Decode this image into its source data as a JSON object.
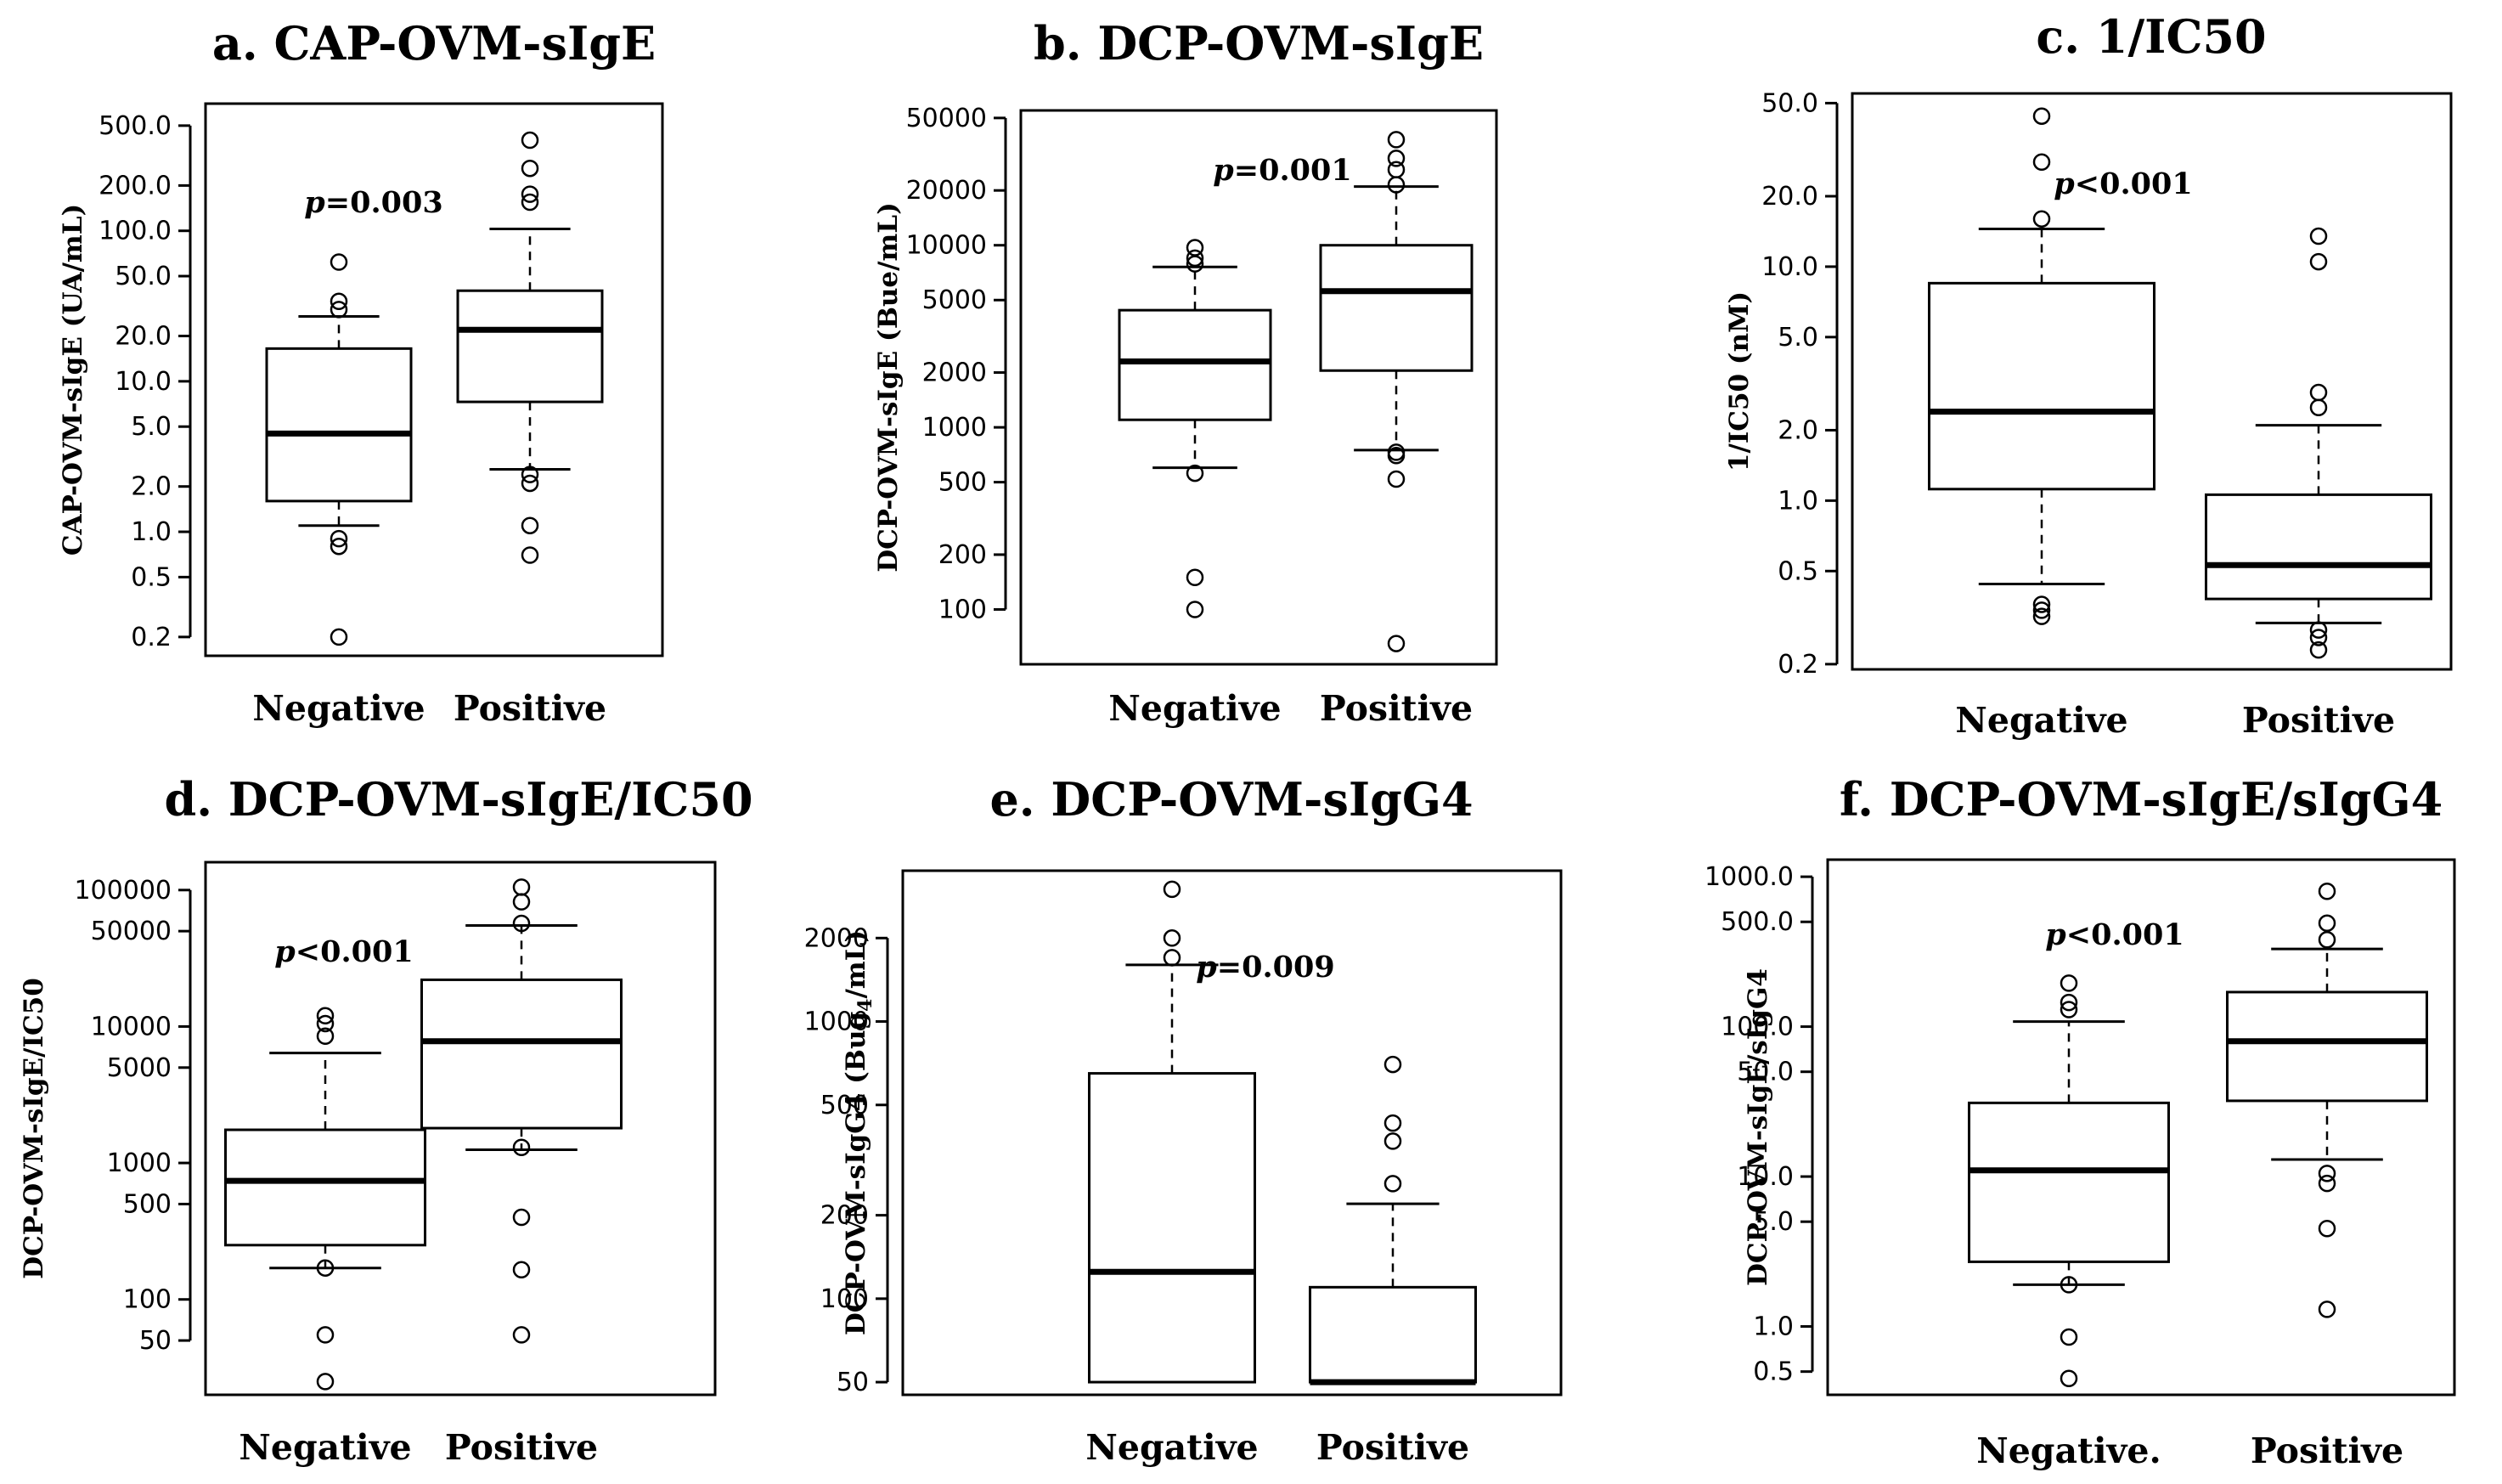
{
  "chart_data": [
    {
      "type": "box",
      "title": "a. CAP-OVM-sIgE",
      "ylabel": "CAP-OVM-sIgE (UA/mL)",
      "yscale": "log",
      "ylim": [
        0.15,
        700
      ],
      "yticks": [
        0.2,
        0.5,
        1,
        2,
        5,
        10,
        20,
        50,
        100,
        200,
        500
      ],
      "ytick_labels": [
        "0.2",
        "0.5",
        "1.0",
        "2.0",
        "5.0",
        "10.0",
        "20.0",
        "50.0",
        "100.0",
        "200.0",
        "500.0"
      ],
      "categories": [
        "Negative",
        "Positive"
      ],
      "boxes": [
        {
          "low": 1.1,
          "q1": 1.6,
          "median": 4.5,
          "q3": 16.5,
          "high": 27,
          "outliers": [
            0.2,
            0.8,
            0.9,
            30,
            34,
            62
          ]
        },
        {
          "low": 2.6,
          "q1": 7.3,
          "median": 22,
          "q3": 40,
          "high": 103,
          "outliers": [
            0.7,
            1.1,
            2.1,
            2.4,
            155,
            175,
            260,
            400
          ]
        }
      ],
      "annotation": {
        "italic": "p",
        "text": "=0.003"
      }
    },
    {
      "type": "box",
      "title": "b. DCP-OVM-sIgE",
      "ylabel": "DCP-OVM-sIgE (Bue/mL)",
      "yscale": "log",
      "ylim": [
        50,
        55000
      ],
      "yticks": [
        100,
        200,
        500,
        1000,
        2000,
        5000,
        10000,
        20000,
        50000
      ],
      "ytick_labels": [
        "100",
        "200",
        "500",
        "1000",
        "2000",
        "5000",
        "10000",
        "20000",
        "50000"
      ],
      "categories": [
        "Negative",
        "Positive"
      ],
      "boxes": [
        {
          "low": 600,
          "q1": 1100,
          "median": 2300,
          "q3": 4400,
          "high": 7600,
          "outliers": [
            100,
            150,
            560,
            7900,
            8500,
            9700
          ]
        },
        {
          "low": 750,
          "q1": 2050,
          "median": 5600,
          "q3": 10000,
          "high": 21000,
          "outliers": [
            65,
            520,
            700,
            730,
            21500,
            26000,
            30000,
            38000
          ]
        }
      ],
      "annotation": {
        "italic": "p",
        "text": "=0.001"
      }
    },
    {
      "type": "box",
      "title": "c. 1/IC50",
      "ylabel": "1/IC50 (nM)",
      "yscale": "log",
      "ylim": [
        0.19,
        55
      ],
      "yticks": [
        0.2,
        0.5,
        1,
        2,
        5,
        10,
        20,
        50
      ],
      "ytick_labels": [
        "0.2",
        "0.5",
        "1.0",
        "2.0",
        "5.0",
        "10.0",
        "20.0",
        "50.0"
      ],
      "categories": [
        "Negative",
        "Positive"
      ],
      "boxes": [
        {
          "low": 0.44,
          "q1": 1.12,
          "median": 2.4,
          "q3": 8.5,
          "high": 14.5,
          "outliers": [
            0.32,
            0.34,
            0.36,
            16,
            28,
            44
          ]
        },
        {
          "low": 0.3,
          "q1": 0.38,
          "median": 0.53,
          "q3": 1.06,
          "high": 2.1,
          "outliers": [
            0.23,
            0.26,
            0.28,
            2.5,
            2.9,
            10.5,
            13.5
          ]
        }
      ],
      "annotation": {
        "italic": "p",
        "text": "<0.001"
      }
    },
    {
      "type": "box",
      "title": "d. DCP-OVM-sIgE/IC50",
      "ylabel": "DCP-OVM-sIgE/IC50",
      "yscale": "log",
      "ylim": [
        20,
        160000
      ],
      "yticks": [
        50,
        100,
        500,
        1000,
        5000,
        10000,
        50000,
        100000
      ],
      "ytick_labels": [
        "50",
        "100",
        "500",
        "1000",
        "5000",
        "10000",
        "50000",
        "100000"
      ],
      "categories": [
        "Negative",
        "Positive"
      ],
      "boxes": [
        {
          "low": 170,
          "q1": 250,
          "median": 740,
          "q3": 1750,
          "high": 6400,
          "outliers": [
            25,
            55,
            170,
            8500,
            10500,
            12000
          ]
        },
        {
          "low": 1250,
          "q1": 1800,
          "median": 7800,
          "q3": 22000,
          "high": 55000,
          "outliers": [
            55,
            165,
            400,
            1300,
            57000,
            82000,
            105000
          ]
        }
      ],
      "annotation": {
        "italic": "p",
        "text": "<0.001"
      }
    },
    {
      "type": "box",
      "title": "e. DCP-OVM-sIgG4",
      "ylabel": "DCP-OVM-sIgG4 (Bug",
      "ylabel_sub": "4",
      "ylabel_end": "/mL)",
      "yscale": "log",
      "ylim": [
        45,
        3500
      ],
      "yticks": [
        50,
        100,
        200,
        500,
        1000,
        2000
      ],
      "ytick_labels": [
        "50",
        "100",
        "200",
        "500",
        "1000",
        "2000"
      ],
      "categories": [
        "Negative",
        "Positive"
      ],
      "boxes": [
        {
          "low": null,
          "q1": 50,
          "median": 125,
          "q3": 650,
          "high": 1600,
          "outliers": [
            1700,
            2000,
            3000
          ]
        },
        {
          "low": null,
          "q1": 50,
          "median": 50,
          "q3": 110,
          "high": 220,
          "outliers": [
            260,
            370,
            430,
            700
          ]
        }
      ],
      "annotation": {
        "italic": "p",
        "text": "=0.009"
      }
    },
    {
      "type": "box",
      "title": "f. DCP-OVM-sIgE/sIgG4",
      "ylabel": "DCP-OVM-sIgE/sIgG4",
      "yscale": "log",
      "ylim": [
        0.35,
        1300
      ],
      "yticks": [
        0.5,
        1,
        5,
        10,
        50,
        100,
        500,
        1000
      ],
      "ytick_labels": [
        "0.5",
        "1.0",
        "5.0",
        "10.0",
        "50.0",
        "100.0",
        "500.0",
        "1000.0"
      ],
      "categories": [
        "Negative.",
        "Positive"
      ],
      "boxes": [
        {
          "low": 1.9,
          "q1": 2.7,
          "median": 11,
          "q3": 31,
          "high": 108,
          "outliers": [
            0.45,
            0.85,
            1.9,
            130,
            145,
            195
          ]
        },
        {
          "low": 13,
          "q1": 32,
          "median": 80,
          "q3": 170,
          "high": 330,
          "outliers": [
            1.3,
            4.5,
            9,
            10.5,
            380,
            490,
            800
          ]
        }
      ],
      "annotation": {
        "italic": "p",
        "text": "<0.001"
      }
    }
  ]
}
